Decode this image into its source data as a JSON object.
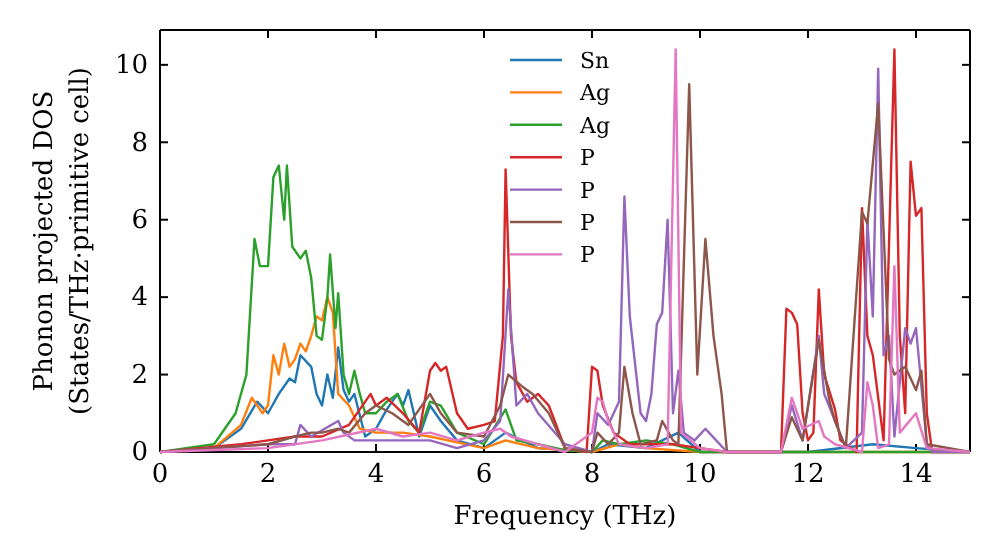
{
  "chart_data": {
    "type": "line",
    "xlabel": "Frequency (THz)",
    "ylabel": "Phonon projected DOS\n(States/THz·primitive cell)",
    "xlim": [
      0,
      15
    ],
    "xticks": [
      0,
      2,
      4,
      6,
      8,
      10,
      12,
      14
    ],
    "ylim": [
      0,
      10.9
    ],
    "yticks": [
      0,
      2,
      4,
      6,
      8,
      10
    ],
    "legend": "top",
    "grid": false,
    "marker": "none",
    "line_style": "solid",
    "series": [
      {
        "name": "Sn",
        "color": "#1f77b4",
        "x": [
          0,
          1,
          1.5,
          1.8,
          2.0,
          2.2,
          2.4,
          2.5,
          2.6,
          2.8,
          2.9,
          3.0,
          3.1,
          3.2,
          3.3,
          3.4,
          3.5,
          3.6,
          3.8,
          4.0,
          4.2,
          4.4,
          4.5,
          4.6,
          4.8,
          5.0,
          5.2,
          5.5,
          6,
          6.4,
          7,
          8,
          8.3,
          9,
          9.6,
          10,
          12,
          13.2,
          14,
          15
        ],
        "values": [
          0,
          0.1,
          0.6,
          1.3,
          1.0,
          1.5,
          1.9,
          1.8,
          2.5,
          2.2,
          1.5,
          1.2,
          2.0,
          1.4,
          2.7,
          1.6,
          1.3,
          1.5,
          0.4,
          0.6,
          1.1,
          1.5,
          1.2,
          1.6,
          0.4,
          1.2,
          0.8,
          0.3,
          0.1,
          0.5,
          0.1,
          0,
          0.2,
          0.1,
          0.5,
          0,
          0,
          0.2,
          0.1,
          0
        ]
      },
      {
        "name": "Ag",
        "color": "#ff7f0e",
        "x": [
          0,
          1,
          1.5,
          1.7,
          1.9,
          2.0,
          2.1,
          2.2,
          2.3,
          2.4,
          2.5,
          2.6,
          2.7,
          2.8,
          2.9,
          3.0,
          3.1,
          3.2,
          3.3,
          3.5,
          3.7,
          4.0,
          4.5,
          5.0,
          6,
          6.4,
          7,
          8,
          8.5,
          9,
          10,
          15
        ],
        "values": [
          0,
          0.1,
          0.7,
          1.4,
          1.0,
          1.2,
          2.5,
          2.0,
          2.8,
          2.2,
          2.4,
          2.8,
          2.6,
          3.0,
          3.5,
          3.4,
          4.0,
          3.6,
          1.5,
          1.2,
          0.6,
          0.5,
          0.5,
          0.4,
          0.1,
          0.3,
          0.1,
          0,
          0.2,
          0.1,
          0,
          0
        ]
      },
      {
        "name": "Ag",
        "color": "#2ca02c",
        "x": [
          0,
          1.0,
          1.4,
          1.6,
          1.75,
          1.85,
          2.0,
          2.1,
          2.2,
          2.3,
          2.35,
          2.45,
          2.6,
          2.7,
          2.8,
          2.9,
          3.0,
          3.1,
          3.15,
          3.25,
          3.3,
          3.4,
          3.5,
          3.6,
          3.7,
          3.8,
          4.0,
          4.2,
          4.4,
          4.6,
          4.8,
          5.0,
          5.2,
          5.5,
          6.0,
          6.4,
          6.6,
          7.0,
          7.5,
          8.0,
          8.2,
          8.5,
          9,
          9.5,
          10,
          15
        ],
        "values": [
          0,
          0.2,
          1,
          2,
          5.5,
          4.8,
          4.8,
          7.1,
          7.4,
          6,
          7.4,
          5.3,
          5.0,
          5.2,
          4.5,
          3.0,
          2.9,
          4,
          5.1,
          3.2,
          4.1,
          2,
          1.5,
          2.1,
          1.5,
          1.0,
          1.0,
          1.3,
          1.5,
          0.8,
          0.5,
          1.3,
          1.2,
          0.5,
          0.2,
          1.1,
          0.3,
          0.2,
          0.05,
          0,
          0.3,
          0.2,
          0.3,
          0.2,
          0,
          0
        ]
      },
      {
        "name": "P",
        "color": "#d62728",
        "x": [
          0,
          1.5,
          2.0,
          2.5,
          3.0,
          3.5,
          3.9,
          4.0,
          4.2,
          4.5,
          4.8,
          5.0,
          5.1,
          5.2,
          5.3,
          5.5,
          5.7,
          6.0,
          6.2,
          6.35,
          6.4,
          6.5,
          6.6,
          6.8,
          7.0,
          7.2,
          7.5,
          7.9,
          8.0,
          8.1,
          8.2,
          8.4,
          8.7,
          9,
          9.5,
          10,
          10.5,
          11.5,
          11.6,
          11.7,
          11.8,
          11.9,
          12.0,
          12.1,
          12.2,
          12.3,
          12.5,
          12.6,
          12.9,
          13.0,
          13.1,
          13.2,
          13.4,
          13.6,
          13.7,
          13.8,
          13.9,
          14.0,
          14.1,
          14.2,
          14.3,
          15
        ],
        "values": [
          0,
          0.2,
          0.3,
          0.4,
          0.4,
          0.7,
          1.5,
          1.2,
          1.4,
          1.0,
          0.5,
          2.1,
          2.3,
          2.1,
          2.2,
          1.0,
          0.6,
          0.7,
          0.8,
          3.0,
          7.3,
          3.0,
          1.8,
          1.3,
          1.5,
          1.2,
          0.1,
          0,
          2.2,
          2.1,
          1.2,
          0.5,
          0.2,
          0.2,
          0.2,
          0.1,
          0,
          0,
          3.7,
          3.6,
          3.3,
          1,
          0.3,
          0.5,
          4.2,
          2,
          1.1,
          0.3,
          0,
          6.3,
          3,
          2.5,
          0.3,
          10.4,
          3,
          1,
          7.5,
          6.1,
          6.3,
          1,
          0,
          0
        ]
      },
      {
        "name": "P",
        "color": "#9467bd",
        "x": [
          0,
          2,
          2.5,
          2.6,
          2.8,
          3.3,
          3.4,
          3.6,
          4,
          4.5,
          5,
          5.5,
          6,
          6.3,
          6.45,
          6.6,
          6.8,
          7.0,
          7.5,
          8,
          8.1,
          8.3,
          8.5,
          8.6,
          8.7,
          8.9,
          9.0,
          9.1,
          9.2,
          9.3,
          9.4,
          9.5,
          9.6,
          9.7,
          9.9,
          10.1,
          10.3,
          10.5,
          11.5,
          11.7,
          11.9,
          12.2,
          12.3,
          12.5,
          12.7,
          13.0,
          13.1,
          13.2,
          13.3,
          13.4,
          13.5,
          13.6,
          13.8,
          13.9,
          14.0,
          14.2,
          14.3,
          15
        ],
        "values": [
          0,
          0.2,
          0.2,
          0.7,
          0.4,
          0.8,
          0.5,
          0.3,
          0.3,
          0.3,
          0.3,
          0.1,
          0.3,
          0.8,
          4.2,
          1.2,
          1.5,
          1.0,
          0.2,
          0,
          1.0,
          0.7,
          1.3,
          6.6,
          3.5,
          1.0,
          0.8,
          1.5,
          3.3,
          3.6,
          6.0,
          1.0,
          2.1,
          0.5,
          0.3,
          0.6,
          0.3,
          0,
          0,
          1.2,
          0.3,
          3.0,
          1.5,
          0.8,
          0.1,
          0.5,
          6.0,
          3.5,
          9.9,
          2.5,
          3.0,
          0.4,
          3.2,
          2.8,
          3.2,
          0.2,
          0,
          0
        ]
      },
      {
        "name": "P",
        "color": "#8c564b",
        "x": [
          0,
          2,
          2.5,
          2.8,
          3.0,
          3.3,
          3.5,
          3.8,
          4.0,
          4.3,
          4.6,
          5.0,
          5.2,
          5.5,
          6.0,
          6.3,
          6.45,
          6.7,
          6.9,
          7.2,
          7.5,
          8,
          8.1,
          8.3,
          8.5,
          8.6,
          8.75,
          8.9,
          9.2,
          9.3,
          9.5,
          9.6,
          9.8,
          9.95,
          10.1,
          10.25,
          10.4,
          10.5,
          11.5,
          11.7,
          11.9,
          12.2,
          12.4,
          12.5,
          12.7,
          13.0,
          13.1,
          13.3,
          13.5,
          13.6,
          13.8,
          14.0,
          14.1,
          14.2,
          15
        ],
        "values": [
          0,
          0.2,
          0.4,
          0.5,
          0.5,
          0.6,
          0.5,
          1.0,
          1.2,
          1.0,
          0.7,
          1.5,
          1.0,
          0.5,
          0.4,
          1.2,
          2.0,
          1.7,
          1.5,
          1.0,
          0.1,
          0,
          0.5,
          0.2,
          0.5,
          2.2,
          1.0,
          0.2,
          0.3,
          0.8,
          0.3,
          0.2,
          9.5,
          2.0,
          5.5,
          3.0,
          1.5,
          0,
          0,
          0.9,
          0.3,
          2.9,
          1.3,
          0.8,
          0.1,
          6.2,
          5.9,
          9.0,
          2.4,
          2.0,
          2.2,
          1.6,
          2.1,
          0.2,
          0
        ]
      },
      {
        "name": "P",
        "color": "#e377c2",
        "x": [
          0,
          2,
          3,
          4,
          4.5,
          5,
          5.5,
          6,
          6.3,
          6.5,
          7,
          7.5,
          8,
          8.1,
          8.2,
          8.3,
          8.5,
          9,
          9.4,
          9.55,
          9.65,
          10,
          10.5,
          11.5,
          11.7,
          11.9,
          12.2,
          12.3,
          12.5,
          13.0,
          13.1,
          13.2,
          13.3,
          13.5,
          13.6,
          13.7,
          14.0,
          14.2,
          15
        ],
        "values": [
          0,
          0.1,
          0.3,
          0.6,
          0.4,
          0.5,
          0.3,
          0.5,
          0.6,
          0.4,
          0.2,
          0,
          0.5,
          1.4,
          1.3,
          0.8,
          0.2,
          0.1,
          0.2,
          10.4,
          0.5,
          0.1,
          0,
          0,
          1.4,
          0.6,
          0.8,
          0.4,
          0.2,
          0,
          1.8,
          1.2,
          0.1,
          0.2,
          4.8,
          0.5,
          1.0,
          0.1,
          0
        ]
      }
    ]
  }
}
